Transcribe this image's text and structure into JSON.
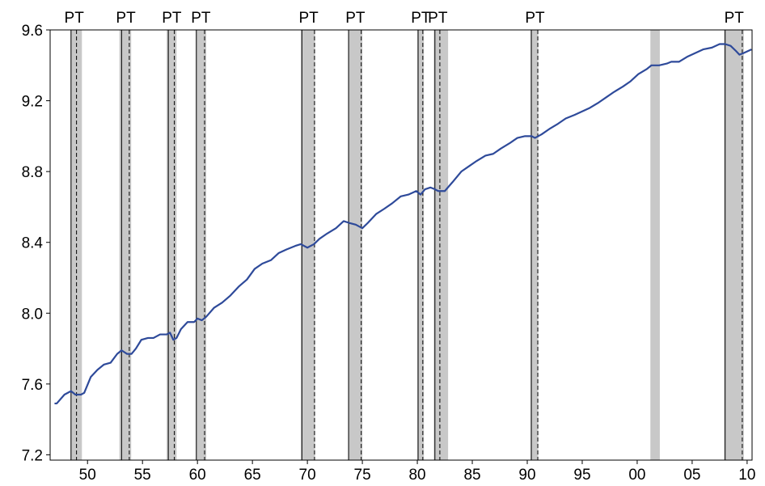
{
  "chart_data": {
    "type": "line",
    "xlim": [
      1946.6,
      2010.45
    ],
    "xticks": [
      {
        "value": 1950,
        "label": "50"
      },
      {
        "value": 1955,
        "label": "55"
      },
      {
        "value": 1960,
        "label": "60"
      },
      {
        "value": 1965,
        "label": "65"
      },
      {
        "value": 1970,
        "label": "70"
      },
      {
        "value": 1975,
        "label": "75"
      },
      {
        "value": 1980,
        "label": "80"
      },
      {
        "value": 1985,
        "label": "85"
      },
      {
        "value": 1990,
        "label": "90"
      },
      {
        "value": 1995,
        "label": "95"
      },
      {
        "value": 2000,
        "label": "00"
      },
      {
        "value": 2005,
        "label": "05"
      },
      {
        "value": 2010,
        "label": "10"
      }
    ],
    "ylim": [
      7.17,
      9.6
    ],
    "yticks": [
      7.2,
      7.6,
      {
        "value": 8,
        "label": "8.0"
      },
      8.4,
      8.8,
      9.2,
      9.6
    ],
    "grid": false,
    "shade_color": "#c8c8c8",
    "shaded": [
      [
        1948.46,
        1949.49
      ],
      [
        1952.9,
        1953.97
      ],
      [
        1957.2,
        1958.1
      ],
      [
        1959.85,
        1960.8
      ],
      [
        1969.4,
        1970.7
      ],
      [
        1973.7,
        1975.0
      ],
      [
        1980.0,
        1980.6
      ],
      [
        1981.5,
        1982.8
      ],
      [
        1990.3,
        1991.0
      ],
      [
        2001.2,
        2002.06
      ],
      [
        2007.9,
        2009.7
      ]
    ],
    "peak_label": "P",
    "trough_label": "T",
    "peaks": [
      1948.5,
      1953.1,
      1957.35,
      1959.9,
      1969.5,
      1973.75,
      1980.07,
      1981.6,
      1990.37,
      2008.0
    ],
    "troughs": [
      1949.0,
      1953.8,
      1957.9,
      1960.65,
      1970.65,
      1974.9,
      1980.5,
      1982.05,
      1990.96,
      2009.56
    ],
    "x": [
      1947.0,
      1947.2,
      1947.9,
      1948.5,
      1948.9,
      1949.4,
      1949.7,
      1950.3,
      1950.9,
      1951.5,
      1952.1,
      1952.7,
      1953.1,
      1953.6,
      1954.0,
      1954.4,
      1954.9,
      1955.5,
      1956.0,
      1956.6,
      1957.2,
      1957.5,
      1957.8,
      1958.1,
      1958.5,
      1959.1,
      1959.7,
      1960.0,
      1960.4,
      1960.8,
      1961.5,
      1962.25,
      1963.0,
      1963.75,
      1964.5,
      1965.2,
      1965.9,
      1966.7,
      1967.4,
      1968.1,
      1968.9,
      1969.4,
      1970.0,
      1970.6,
      1971.1,
      1971.8,
      1972.6,
      1973.3,
      1973.8,
      1974.4,
      1975.0,
      1975.5,
      1976.25,
      1977.0,
      1977.7,
      1978.5,
      1979.2,
      1979.9,
      1980.3,
      1980.7,
      1981.2,
      1981.6,
      1981.9,
      1982.5,
      1983.2,
      1984.0,
      1984.7,
      1985.4,
      1986.2,
      1986.9,
      1987.6,
      1988.4,
      1989.1,
      1989.8,
      1990.4,
      1990.7,
      1991.3,
      1992.0,
      1992.8,
      1993.5,
      1994.3,
      1995.0,
      1995.7,
      1996.5,
      1997.2,
      1997.9,
      1998.7,
      1999.4,
      2000.1,
      2000.9,
      2001.3,
      2002.0,
      2002.7,
      2003.1,
      2003.8,
      2004.6,
      2005.3,
      2006.0,
      2006.8,
      2007.5,
      2008.0,
      2008.5,
      2009.0,
      2009.3,
      2009.7,
      2010.4
    ],
    "series": [
      {
        "color": "#2e4a9a",
        "values": [
          7.49,
          7.49,
          7.54,
          7.56,
          7.54,
          7.54,
          7.55,
          7.64,
          7.68,
          7.71,
          7.72,
          7.77,
          7.79,
          7.77,
          7.77,
          7.8,
          7.85,
          7.86,
          7.86,
          7.88,
          7.88,
          7.89,
          7.85,
          7.86,
          7.91,
          7.95,
          7.95,
          7.97,
          7.96,
          7.98,
          8.03,
          8.06,
          8.1,
          8.15,
          8.19,
          8.25,
          8.28,
          8.3,
          8.34,
          8.36,
          8.38,
          8.39,
          8.37,
          8.39,
          8.42,
          8.45,
          8.48,
          8.52,
          8.51,
          8.5,
          8.48,
          8.51,
          8.56,
          8.59,
          8.62,
          8.66,
          8.67,
          8.69,
          8.67,
          8.7,
          8.71,
          8.7,
          8.69,
          8.69,
          8.74,
          8.8,
          8.83,
          8.86,
          8.89,
          8.9,
          8.93,
          8.96,
          8.99,
          9.0,
          9.0,
          8.99,
          9.01,
          9.04,
          9.07,
          9.1,
          9.12,
          9.14,
          9.16,
          9.19,
          9.22,
          9.25,
          9.28,
          9.31,
          9.35,
          9.38,
          9.4,
          9.4,
          9.41,
          9.42,
          9.42,
          9.45,
          9.47,
          9.49,
          9.5,
          9.52,
          9.52,
          9.51,
          9.48,
          9.46,
          9.47,
          9.49
        ]
      }
    ]
  }
}
